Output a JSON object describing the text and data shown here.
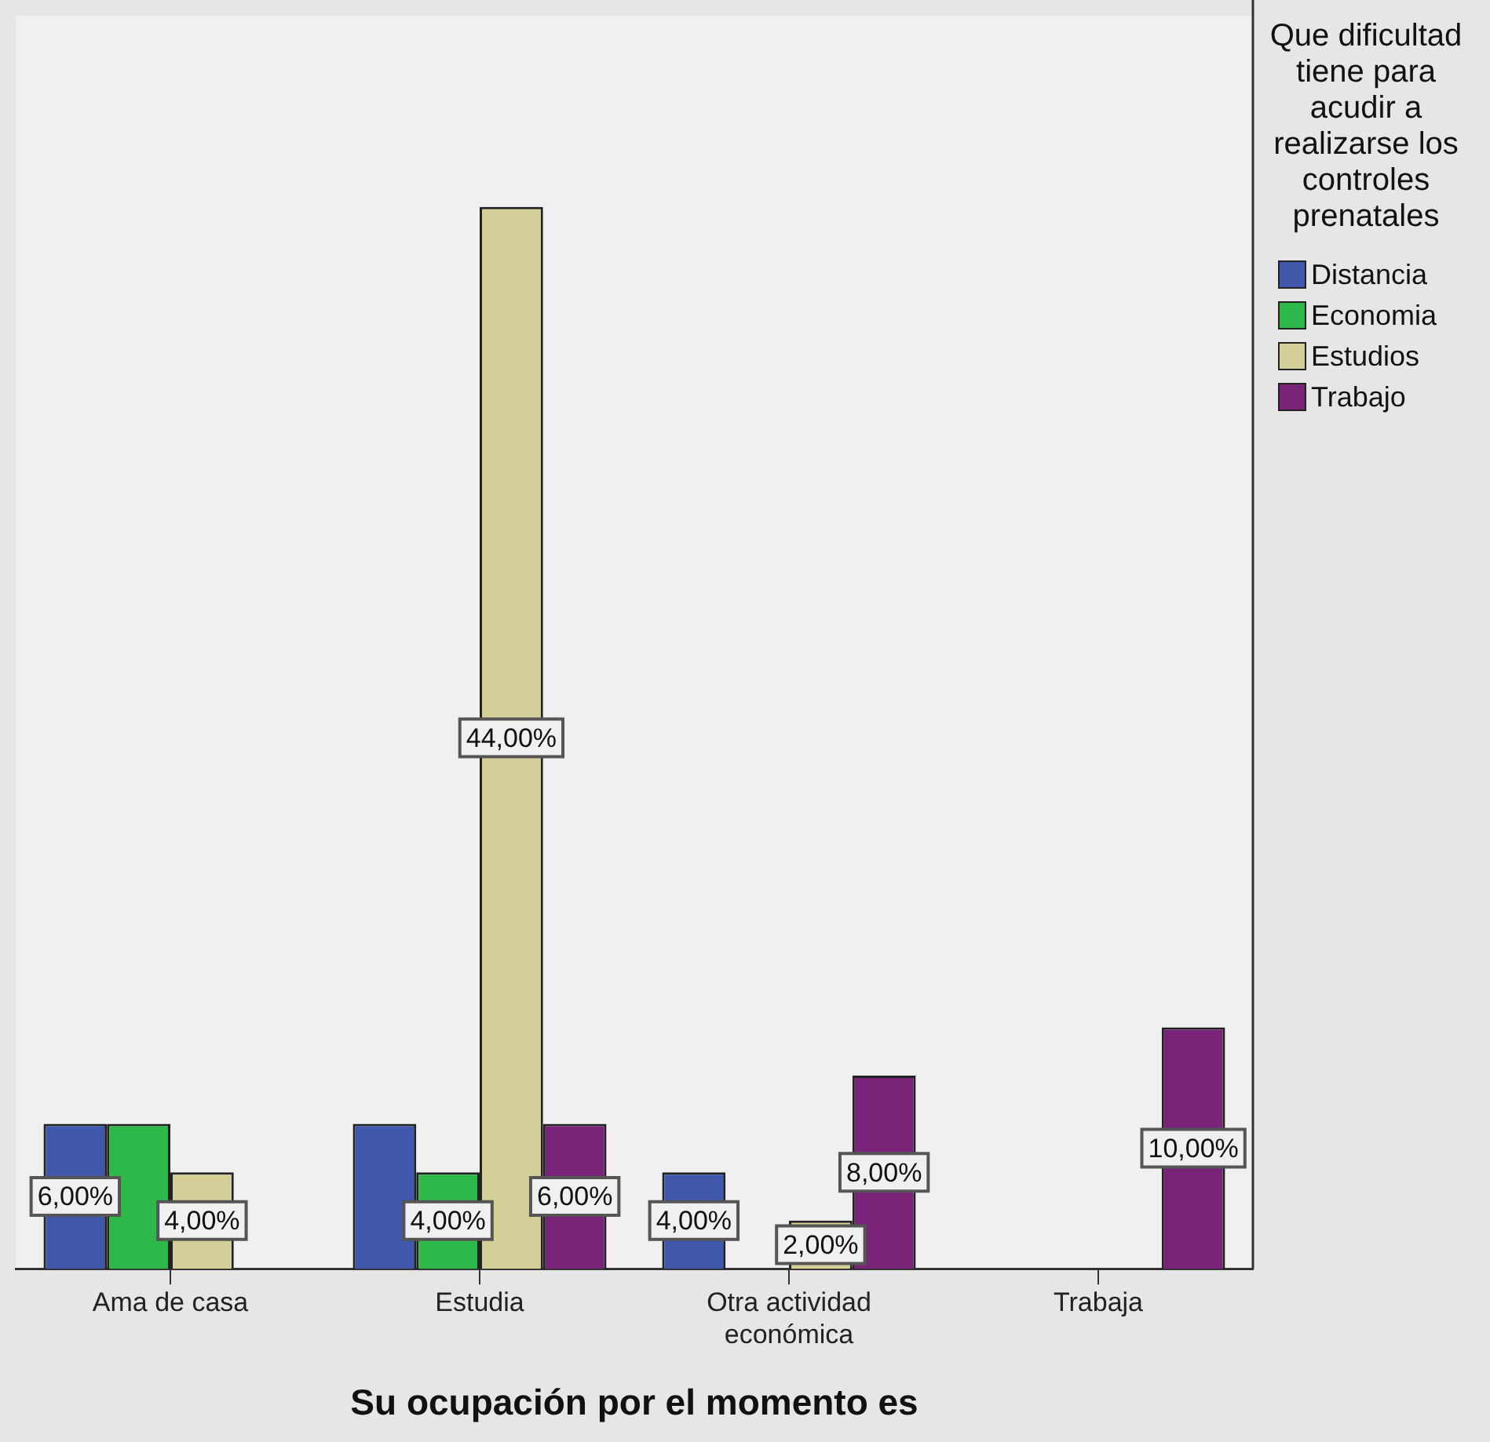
{
  "chart_data": {
    "type": "bar",
    "xlabel": "Su ocupación por el momento es",
    "legend_title": "Que dificultad tiene para acudir a realizarse los controles prenatales",
    "legend": "top right",
    "grid": false,
    "categories": [
      "Ama de casa",
      "Estudia",
      "Otra actividad económica",
      "Trabaja"
    ],
    "series": [
      {
        "name": "Distancia",
        "color": "#3f58ac",
        "values": [
          6,
          6,
          4,
          null
        ],
        "value_labels": [
          "6,00%",
          null,
          "4,00%",
          null
        ]
      },
      {
        "name": "Economia",
        "color": "#2fb84a",
        "values": [
          6,
          4,
          null,
          null
        ],
        "value_labels": [
          null,
          "4,00%",
          null,
          null
        ]
      },
      {
        "name": "Estudios",
        "color": "#d4cf98",
        "values": [
          4,
          44,
          2,
          null
        ],
        "value_labels": [
          "4,00%",
          "44,00%",
          "2,00%",
          null
        ]
      },
      {
        "name": "Trabajo",
        "color": "#7a2479",
        "values": [
          null,
          6,
          8,
          10
        ],
        "value_labels": [
          null,
          "6,00%",
          "8,00%",
          "10,00%"
        ]
      }
    ]
  }
}
